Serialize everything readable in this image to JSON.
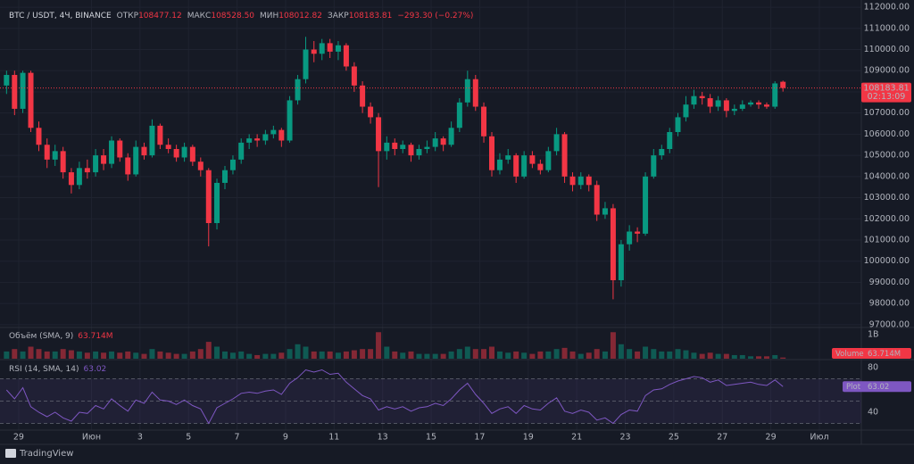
{
  "header": {
    "symbol": "BTC / USDT, 4Ч, BINANCE",
    "open_label": "ОТКР",
    "open": "108477.12",
    "high_label": "МАКС",
    "high": "108528.50",
    "low_label": "МИН",
    "low": "108012.82",
    "close_label": "ЗАКР",
    "close": "108183.81",
    "change": "−293.30 (−0.27%)"
  },
  "chart_data": {
    "type": "candlestick",
    "colors": {
      "up": "#089981",
      "down": "#f23645"
    },
    "countdown": "02:13:09",
    "x": [
      28.5,
      28.83,
      29.17,
      29.5,
      29.83,
      30.17,
      30.5,
      30.83,
      31.17,
      31.5,
      31.83,
      32.17,
      32.5,
      32.83,
      33.17,
      33.5,
      33.83,
      34.17,
      34.5,
      34.83,
      35.17,
      35.5,
      35.83,
      36.17,
      36.5,
      36.83,
      37.17,
      37.5,
      37.83,
      38.17,
      38.5,
      38.83,
      39.17,
      39.5,
      39.83,
      40.17,
      40.5,
      40.83,
      41.17,
      41.5,
      41.83,
      42.17,
      42.5,
      42.83,
      43.17,
      43.5,
      43.83,
      44.17,
      44.5,
      44.83,
      45.17,
      45.5,
      45.83,
      46.17,
      46.5,
      46.83,
      47.17,
      47.5,
      47.83,
      48.17,
      48.5,
      48.83,
      49.17,
      49.5,
      49.83,
      50.17,
      50.5,
      50.83,
      51.17,
      51.5,
      51.83,
      52.17,
      52.5,
      52.83,
      53.17,
      53.5,
      53.83,
      54.17,
      54.5,
      54.83,
      55.17,
      55.5,
      55.83,
      56.17,
      56.5,
      56.83,
      57.17,
      57.5,
      57.83,
      58.17,
      58.5,
      58.83,
      59.17,
      59.5,
      59.83,
      60.17,
      60.5
    ],
    "xlim": [
      28.23,
      63.73
    ],
    "xticks": [
      {
        "value": 29,
        "label": "29"
      },
      {
        "value": 32,
        "label": "Июн"
      },
      {
        "value": 34,
        "label": "3"
      },
      {
        "value": 36,
        "label": "5"
      },
      {
        "value": 38,
        "label": "7"
      },
      {
        "value": 40,
        "label": "9"
      },
      {
        "value": 42,
        "label": "11"
      },
      {
        "value": 44,
        "label": "13"
      },
      {
        "value": 46,
        "label": "15"
      },
      {
        "value": 48,
        "label": "17"
      },
      {
        "value": 50,
        "label": "19"
      },
      {
        "value": 52,
        "label": "21"
      },
      {
        "value": 54,
        "label": "23"
      },
      {
        "value": 56,
        "label": "25"
      },
      {
        "value": 58,
        "label": "27"
      },
      {
        "value": 60,
        "label": "29"
      },
      {
        "value": 62,
        "label": "Июл"
      }
    ],
    "ohlc": [
      [
        108300,
        109000,
        107900,
        108800
      ],
      [
        108800,
        109000,
        106900,
        107200
      ],
      [
        107200,
        109000,
        107000,
        108900
      ],
      [
        108900,
        109000,
        106100,
        106300
      ],
      [
        106300,
        106600,
        105200,
        105500
      ],
      [
        105500,
        105800,
        104400,
        104800
      ],
      [
        104800,
        105500,
        104500,
        105200
      ],
      [
        105200,
        105400,
        103900,
        104200
      ],
      [
        104200,
        104400,
        103200,
        103600
      ],
      [
        103600,
        104700,
        103400,
        104400
      ],
      [
        104400,
        104800,
        103900,
        104200
      ],
      [
        104200,
        105300,
        104000,
        105000
      ],
      [
        105000,
        105300,
        104300,
        104600
      ],
      [
        104600,
        105900,
        104400,
        105700
      ],
      [
        105700,
        105800,
        104700,
        104900
      ],
      [
        104900,
        105100,
        103800,
        104100
      ],
      [
        104100,
        105700,
        104000,
        105400
      ],
      [
        105400,
        105600,
        104800,
        105000
      ],
      [
        105000,
        106700,
        104900,
        106400
      ],
      [
        106400,
        106500,
        105300,
        105500
      ],
      [
        105500,
        105800,
        105100,
        105300
      ],
      [
        105300,
        105500,
        104700,
        104900
      ],
      [
        104900,
        105600,
        104700,
        105400
      ],
      [
        105400,
        105500,
        104500,
        104700
      ],
      [
        104700,
        104900,
        104000,
        104300
      ],
      [
        104300,
        104400,
        100700,
        101800
      ],
      [
        101800,
        103900,
        101500,
        103700
      ],
      [
        103700,
        104500,
        103400,
        104300
      ],
      [
        104300,
        105000,
        104100,
        104800
      ],
      [
        104800,
        105800,
        104600,
        105600
      ],
      [
        105600,
        106000,
        105300,
        105800
      ],
      [
        105800,
        106000,
        105400,
        105700
      ],
      [
        105700,
        106200,
        105500,
        106000
      ],
      [
        106000,
        106400,
        105800,
        106200
      ],
      [
        106200,
        106300,
        105400,
        105700
      ],
      [
        105700,
        107800,
        105600,
        107600
      ],
      [
        107600,
        108800,
        107400,
        108600
      ],
      [
        108600,
        110600,
        108400,
        110000
      ],
      [
        110000,
        110400,
        109400,
        109800
      ],
      [
        109800,
        110500,
        109500,
        110300
      ],
      [
        110300,
        110500,
        109600,
        109900
      ],
      [
        109900,
        110400,
        109500,
        110200
      ],
      [
        110200,
        110300,
        109000,
        109200
      ],
      [
        109200,
        109400,
        108000,
        108300
      ],
      [
        108300,
        108500,
        107000,
        107300
      ],
      [
        107300,
        107500,
        106500,
        106800
      ],
      [
        106800,
        107000,
        103500,
        105200
      ],
      [
        105200,
        105900,
        104800,
        105600
      ],
      [
        105600,
        105800,
        105000,
        105300
      ],
      [
        105300,
        105700,
        105100,
        105500
      ],
      [
        105500,
        105600,
        104700,
        105000
      ],
      [
        105000,
        105500,
        104800,
        105300
      ],
      [
        105300,
        105700,
        105100,
        105400
      ],
      [
        105400,
        106100,
        105200,
        105800
      ],
      [
        105800,
        105900,
        105200,
        105500
      ],
      [
        105500,
        106600,
        105400,
        106300
      ],
      [
        106300,
        107700,
        106100,
        107500
      ],
      [
        107500,
        109000,
        107300,
        108600
      ],
      [
        108600,
        108800,
        107100,
        107300
      ],
      [
        107300,
        107500,
        105600,
        105900
      ],
      [
        105900,
        106100,
        104000,
        104300
      ],
      [
        104300,
        105100,
        104100,
        104800
      ],
      [
        104800,
        105300,
        104600,
        105000
      ],
      [
        105000,
        105100,
        103700,
        104000
      ],
      [
        104000,
        105200,
        103900,
        105000
      ],
      [
        105000,
        105200,
        104400,
        104600
      ],
      [
        104600,
        104800,
        104100,
        104300
      ],
      [
        104300,
        105400,
        104200,
        105200
      ],
      [
        105200,
        106300,
        105000,
        106000
      ],
      [
        106000,
        106100,
        103700,
        104000
      ],
      [
        104000,
        104200,
        103300,
        103600
      ],
      [
        103600,
        104200,
        103400,
        104000
      ],
      [
        104000,
        104100,
        103300,
        103600
      ],
      [
        103600,
        103800,
        101900,
        102200
      ],
      [
        102200,
        102800,
        102000,
        102500
      ],
      [
        102500,
        102700,
        98200,
        99100
      ],
      [
        99100,
        101000,
        98800,
        100800
      ],
      [
        100800,
        101700,
        100500,
        101400
      ],
      [
        101400,
        101600,
        100900,
        101300
      ],
      [
        101300,
        104200,
        101200,
        104000
      ],
      [
        104000,
        105300,
        103900,
        105000
      ],
      [
        105000,
        105500,
        104800,
        105300
      ],
      [
        105300,
        106300,
        105100,
        106100
      ],
      [
        106100,
        107000,
        105900,
        106800
      ],
      [
        106800,
        107800,
        106600,
        107400
      ],
      [
        107400,
        108100,
        107200,
        107800
      ],
      [
        107800,
        108000,
        107400,
        107700
      ],
      [
        107700,
        107900,
        107000,
        107300
      ],
      [
        107300,
        107800,
        107100,
        107600
      ],
      [
        107600,
        107700,
        106800,
        107100
      ],
      [
        107100,
        107400,
        106900,
        107200
      ],
      [
        107200,
        107600,
        107100,
        107400
      ],
      [
        107400,
        107600,
        107300,
        107500
      ],
      [
        107500,
        107600,
        107200,
        107400
      ],
      [
        107400,
        107500,
        107200,
        107300
      ],
      [
        107300,
        108500,
        107200,
        108400
      ],
      [
        108477.12,
        108528.5,
        108012.82,
        108183.81
      ]
    ],
    "ylim": [
      96910,
      112340
    ],
    "yticks": [
      {
        "value": 97000,
        "label": "97000.00"
      },
      {
        "value": 98000,
        "label": "98000.00"
      },
      {
        "value": 99000,
        "label": "99000.00"
      },
      {
        "value": 100000,
        "label": "100000.00"
      },
      {
        "value": 101000,
        "label": "101000.00"
      },
      {
        "value": 102000,
        "label": "102000.00"
      },
      {
        "value": 103000,
        "label": "103000.00"
      },
      {
        "value": 104000,
        "label": "104000.00"
      },
      {
        "value": 105000,
        "label": "105000.00"
      },
      {
        "value": 106000,
        "label": "106000.00"
      },
      {
        "value": 107000,
        "label": "107000.00"
      },
      {
        "value": 108000,
        "label": "108000.00"
      },
      {
        "value": 109000,
        "label": "109000.00"
      },
      {
        "value": 110000,
        "label": "110000.00"
      },
      {
        "value": 111000,
        "label": "111000.00"
      },
      {
        "value": 112000,
        "label": "112000.00"
      }
    ],
    "volume": {
      "title": "Объём (SMA, 9)",
      "sma": {
        "value": 63714000,
        "label": "63.714M"
      },
      "tag": "Volume",
      "values": [
        300000000.0,
        400000000.0,
        300000000.0,
        500000000.0,
        400000000.0,
        300000000.0,
        300000000.0,
        400000000.0,
        350000000.0,
        300000000.0,
        250000000.0,
        300000000.0,
        250000000.0,
        300000000.0,
        250000000.0,
        300000000.0,
        250000000.0,
        200000000.0,
        400000000.0,
        300000000.0,
        250000000.0,
        200000000.0,
        200000000.0,
        300000000.0,
        400000000.0,
        700000000.0,
        500000000.0,
        300000000.0,
        250000000.0,
        300000000.0,
        200000000.0,
        150000000.0,
        200000000.0,
        200000000.0,
        250000000.0,
        400000000.0,
        600000000.0,
        500000000.0,
        300000000.0,
        300000000.0,
        300000000.0,
        250000000.0,
        300000000.0,
        350000000.0,
        400000000.0,
        400000000.0,
        1100000000.0,
        500000000.0,
        300000000.0,
        250000000.0,
        300000000.0,
        200000000.0,
        200000000.0,
        200000000.0,
        200000000.0,
        300000000.0,
        400000000.0,
        500000000.0,
        400000000.0,
        400000000.0,
        500000000.0,
        300000000.0,
        250000000.0,
        300000000.0,
        250000000.0,
        200000000.0,
        300000000.0,
        300000000.0,
        400000000.0,
        450000000.0,
        300000000.0,
        200000000.0,
        250000000.0,
        400000000.0,
        300000000.0,
        1100000000.0,
        600000000.0,
        400000000.0,
        300000000.0,
        500000000.0,
        400000000.0,
        300000000.0,
        300000000.0,
        400000000.0,
        350000000.0,
        250000000.0,
        200000000.0,
        250000000.0,
        200000000.0,
        200000000.0,
        150000000.0,
        150000000.0,
        100000000.0,
        100000000.0,
        100000000.0,
        150000000.0,
        50000000.0
      ],
      "ylim": [
        0,
        1185000000.0
      ],
      "yticks": [
        {
          "value": 1000000000.0,
          "label": "1B"
        }
      ]
    },
    "rsi": {
      "title": "RSI (14, SMA, 14)",
      "tag": "Plot",
      "color": "#7e57c2",
      "values": [
        60,
        52,
        62,
        45,
        40,
        36,
        40,
        35,
        32,
        40,
        39,
        46,
        43,
        52,
        46,
        41,
        51,
        48,
        58,
        51,
        50,
        47,
        51,
        46,
        43,
        30,
        44,
        48,
        52,
        57,
        58,
        57,
        59,
        60,
        56,
        66,
        71,
        78,
        76,
        78,
        74,
        75,
        67,
        61,
        55,
        52,
        42,
        45,
        43,
        45,
        41,
        44,
        45,
        48,
        46,
        52,
        60,
        66,
        56,
        48,
        39,
        43,
        45,
        39,
        46,
        43,
        42,
        48,
        53,
        41,
        39,
        42,
        40,
        33,
        35,
        30,
        38,
        42,
        41,
        55,
        60,
        61,
        65,
        68,
        70,
        72,
        71,
        67,
        69,
        64,
        65,
        66,
        67,
        65,
        64,
        69,
        63.02
      ],
      "ylim": [
        24,
        86.4
      ],
      "yticks": [
        40,
        80
      ],
      "bands": [
        30,
        50,
        70
      ]
    }
  },
  "footer": {
    "brand": "TradingView"
  }
}
